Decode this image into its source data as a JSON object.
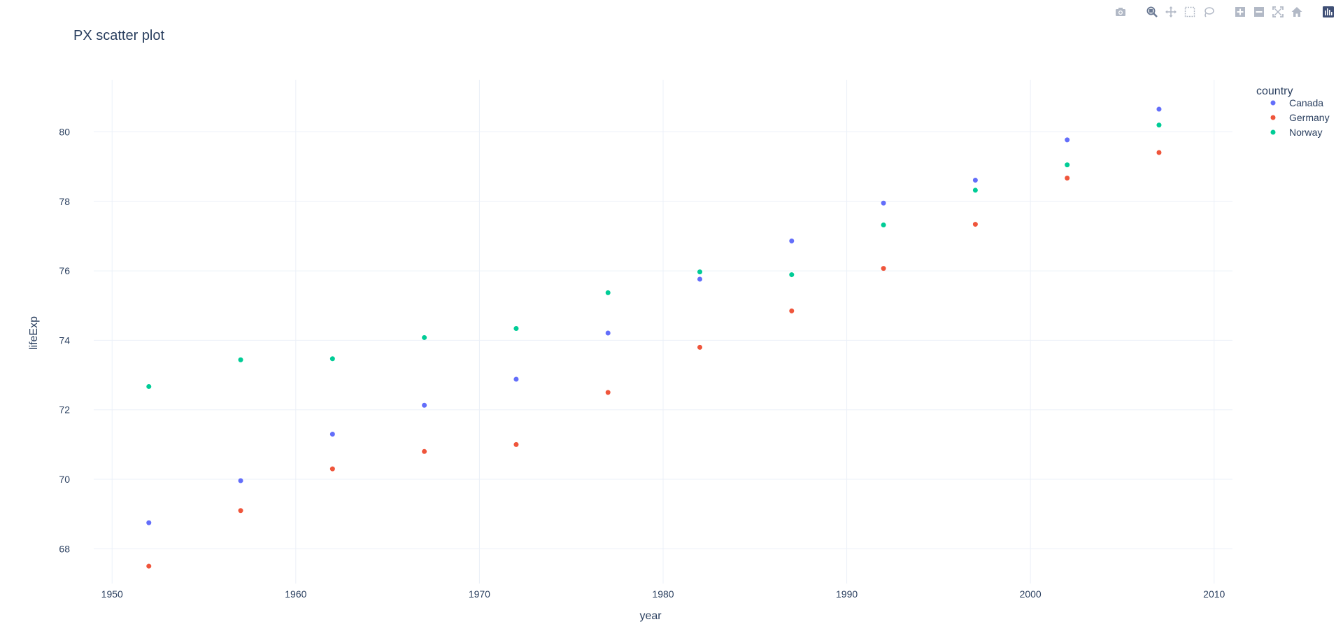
{
  "chart_data": {
    "type": "scatter",
    "title": "PX scatter plot",
    "xlabel": "year",
    "ylabel": "lifeExp",
    "xlim": [
      1949,
      2011
    ],
    "ylim": [
      67,
      81.5
    ],
    "x_ticks": [
      1950,
      1960,
      1970,
      1980,
      1990,
      2000,
      2010
    ],
    "y_ticks": [
      68,
      70,
      72,
      74,
      76,
      78,
      80
    ],
    "grid": true,
    "legend_title": "country",
    "legend_position": "top-right",
    "series": [
      {
        "name": "Canada",
        "color": "#636efa",
        "x": [
          1952,
          1957,
          1962,
          1967,
          1972,
          1977,
          1982,
          1987,
          1992,
          1997,
          2002,
          2007
        ],
        "y": [
          68.75,
          69.96,
          71.3,
          72.13,
          72.88,
          74.21,
          75.76,
          76.86,
          77.95,
          78.61,
          79.77,
          80.653
        ]
      },
      {
        "name": "Germany",
        "color": "#ef553b",
        "x": [
          1952,
          1957,
          1962,
          1967,
          1972,
          1977,
          1982,
          1987,
          1992,
          1997,
          2002,
          2007
        ],
        "y": [
          67.5,
          69.1,
          70.3,
          70.8,
          71.0,
          72.5,
          73.8,
          74.847,
          76.07,
          77.34,
          78.67,
          79.406
        ]
      },
      {
        "name": "Norway",
        "color": "#00cc96",
        "x": [
          1952,
          1957,
          1962,
          1967,
          1972,
          1977,
          1982,
          1987,
          1992,
          1997,
          2002,
          2007
        ],
        "y": [
          72.67,
          73.44,
          73.47,
          74.08,
          74.34,
          75.37,
          75.97,
          75.89,
          77.32,
          78.32,
          79.05,
          80.196
        ]
      }
    ]
  },
  "modebar": {
    "icons": [
      "camera-icon",
      "zoom-icon",
      "pan-icon",
      "box-select-icon",
      "lasso-select-icon",
      "zoom-in-icon",
      "zoom-out-icon",
      "autoscale-icon",
      "reset-axes-icon",
      "plotly-logo-icon"
    ],
    "icon_color": "#b2b9c6",
    "active_color": "#6b7a94",
    "logo_color": "#3f4f75"
  },
  "style": {
    "grid_color": "#ebf0f8",
    "text_color": "#2a3f5f",
    "background": "#ffffff"
  }
}
